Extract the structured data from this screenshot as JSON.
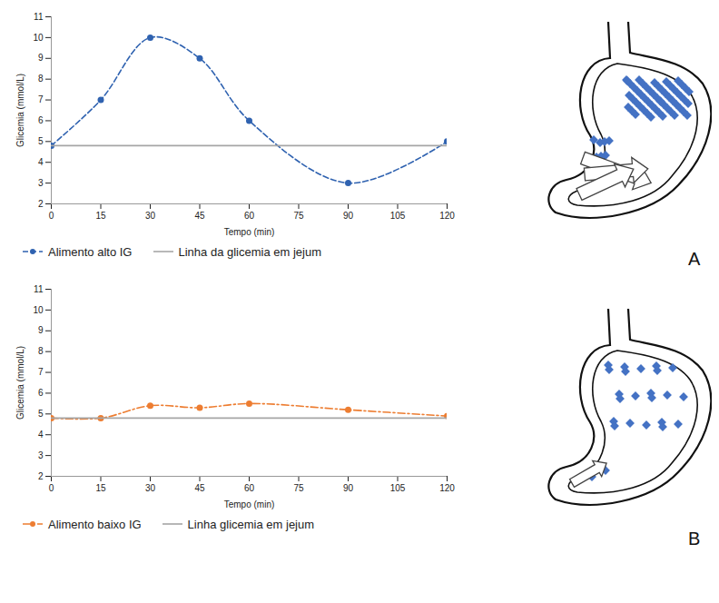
{
  "chart_data": [
    {
      "type": "line",
      "x_label": "Tempo (min)",
      "y_label": "Glicemia (mmol/L)",
      "x": [
        0,
        15,
        30,
        45,
        60,
        90,
        120
      ],
      "series": [
        {
          "name": "Alimento alto IG",
          "color": "#2f62b0",
          "marker": "circle",
          "line_style": "dashed",
          "values": [
            4.8,
            7.0,
            10.0,
            9.0,
            6.0,
            3.0,
            5.0
          ]
        },
        {
          "name": "Linha da glicemia em jejum",
          "color": "#a6a6a6",
          "line_style": "solid",
          "values": [
            4.8,
            4.8,
            4.8,
            4.8,
            4.8,
            4.8,
            4.8
          ]
        }
      ],
      "xlim": [
        0,
        120
      ],
      "xticks": [
        0,
        15,
        30,
        45,
        60,
        75,
        90,
        105,
        120
      ],
      "ylim": [
        2,
        11
      ],
      "yticks": [
        2,
        3,
        4,
        5,
        6,
        7,
        8,
        9,
        10,
        11
      ],
      "grid": false,
      "legend": "bottom"
    },
    {
      "type": "line",
      "x_label": "Tempo (min)",
      "y_label": "Glicemia (mmol/L)",
      "x": [
        0,
        15,
        30,
        45,
        60,
        90,
        120
      ],
      "series": [
        {
          "name": "Alimento baixo IG",
          "color": "#ed7d31",
          "marker": "circle",
          "line_style": "dashdot",
          "values": [
            4.8,
            4.8,
            5.4,
            5.3,
            5.5,
            5.2,
            4.9
          ]
        },
        {
          "name": "Linha glicemia em jejum",
          "color": "#a6a6a6",
          "line_style": "solid",
          "values": [
            4.8,
            4.8,
            4.8,
            4.8,
            4.8,
            4.8,
            4.8
          ]
        }
      ],
      "xlim": [
        0,
        120
      ],
      "xticks": [
        0,
        15,
        30,
        45,
        60,
        75,
        90,
        105,
        120
      ],
      "ylim": [
        2,
        11
      ],
      "yticks": [
        2,
        3,
        4,
        5,
        6,
        7,
        8,
        9,
        10,
        11
      ],
      "grid": false,
      "legend": "bottom"
    }
  ],
  "diagram_labels": [
    "A",
    "B"
  ]
}
